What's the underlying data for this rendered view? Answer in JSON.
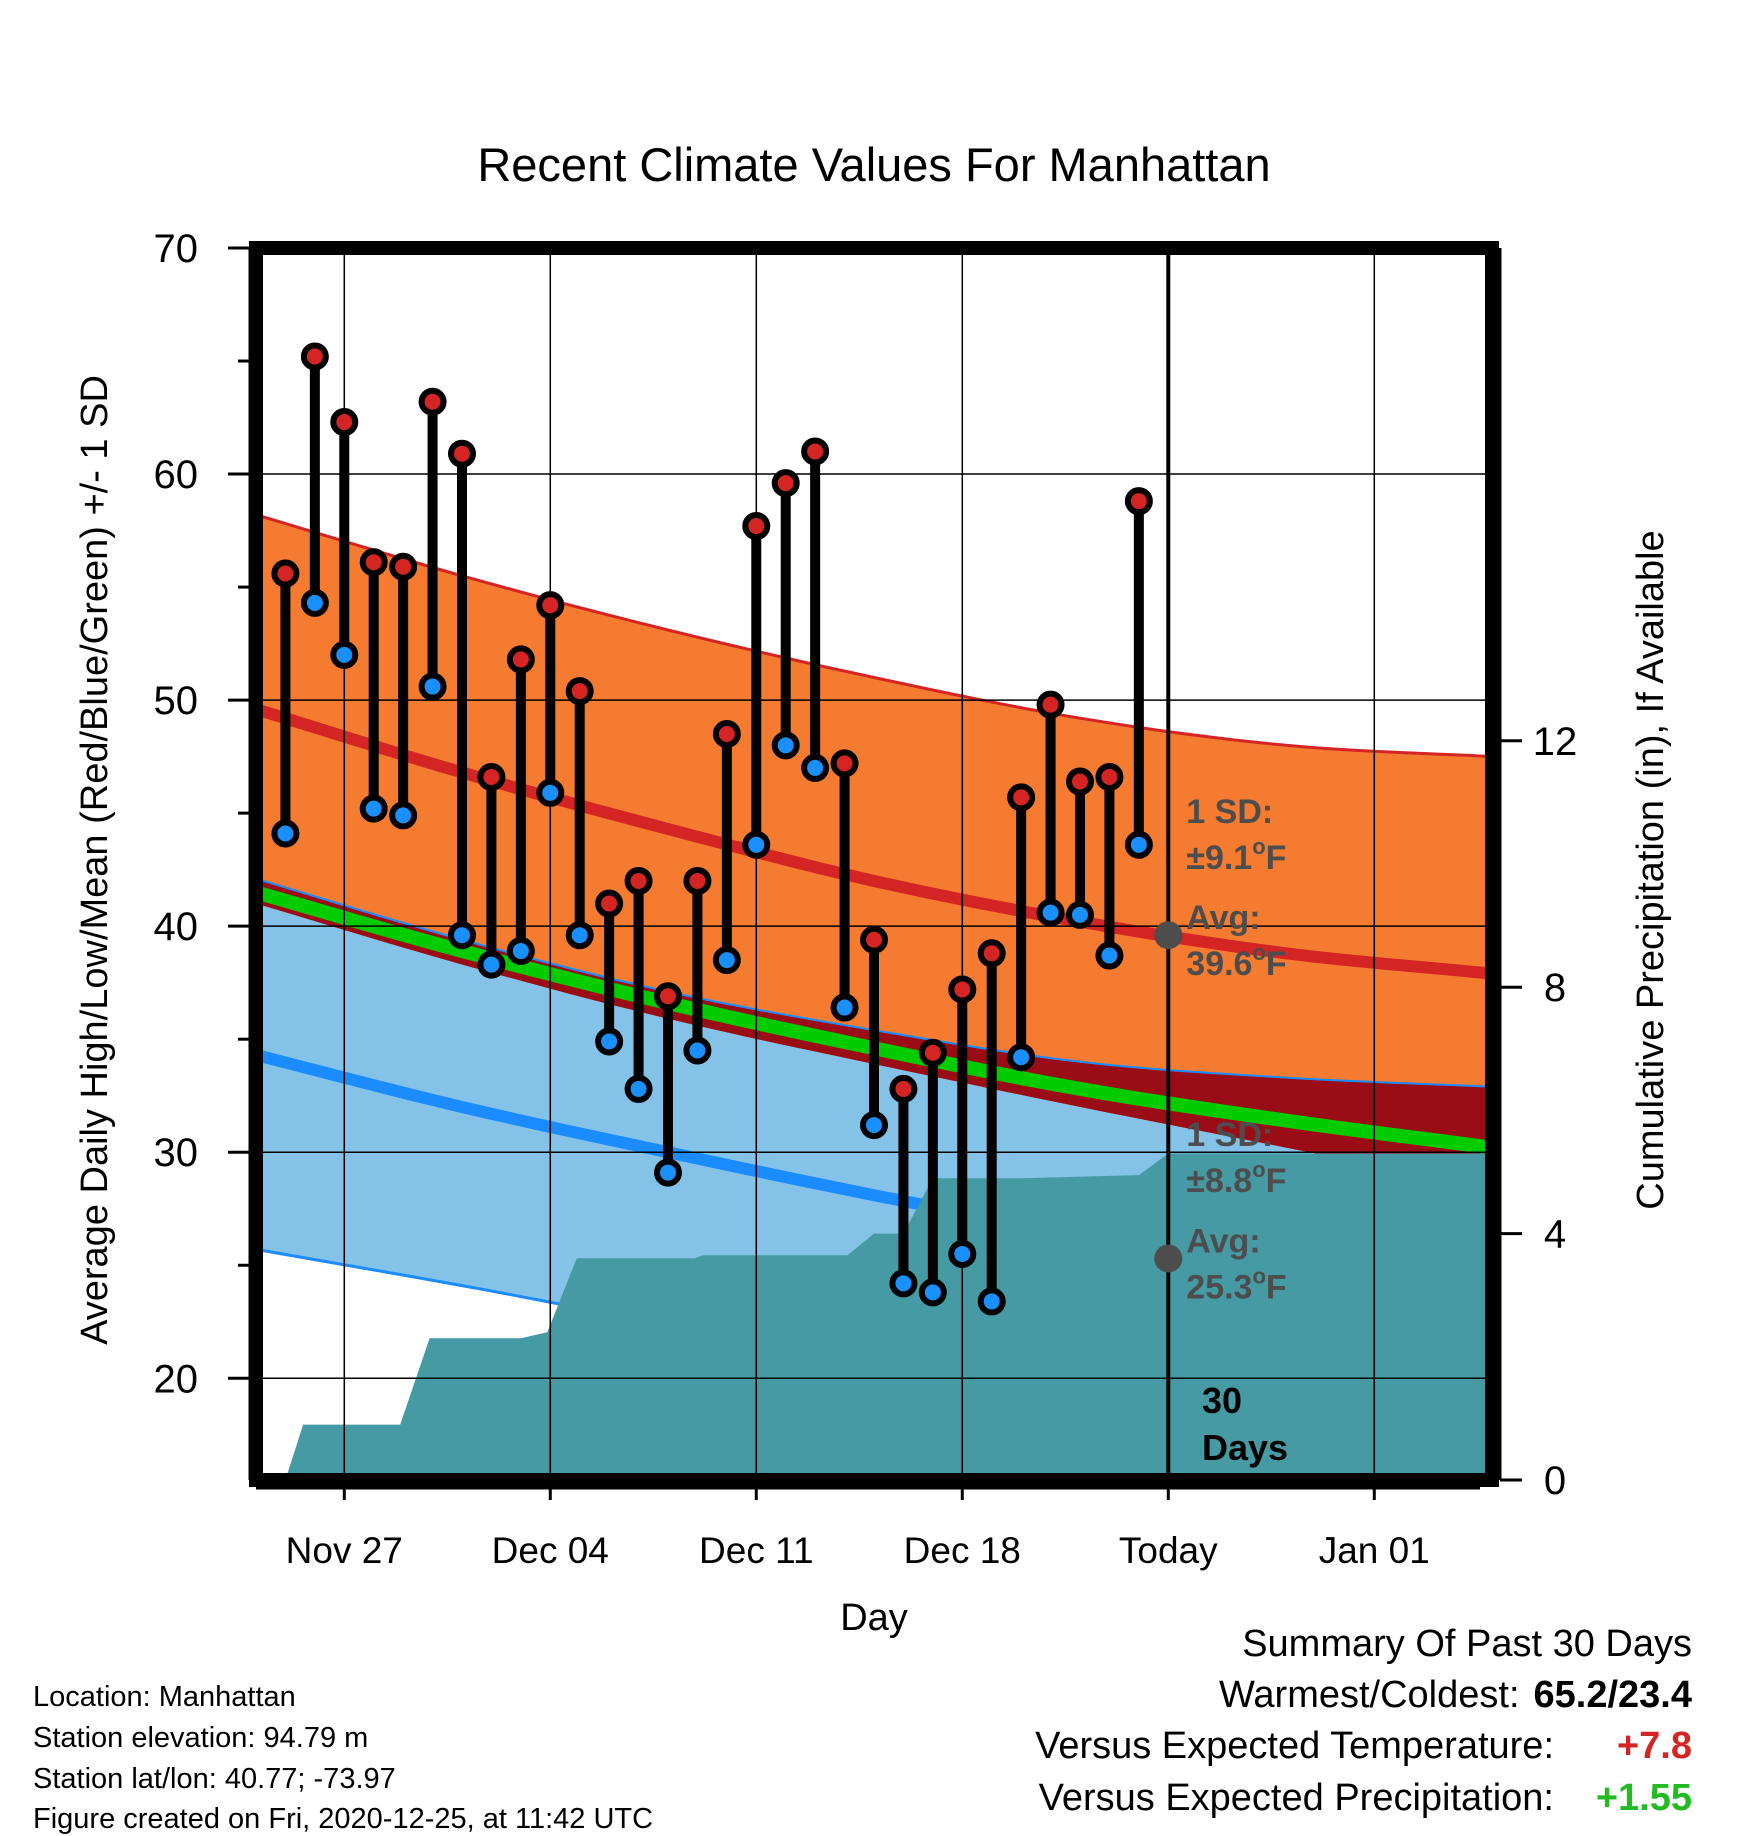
{
  "chart_data": {
    "type": "line",
    "title": "Recent Climate Values For Manhattan",
    "xlabel": "Day",
    "ylabel": "Average Daily High/Low/Mean (Red/Blue/Green) +/- 1 SD",
    "y2label": "Cumulative Precipitation (in), If Available",
    "ylim": [
      15.5,
      70
    ],
    "y2lim": [
      0,
      20
    ],
    "xlim": [
      0,
      42
    ],
    "x_tick_positions": [
      3,
      10,
      17,
      24,
      31,
      38
    ],
    "x_tick_labels": [
      "Nov 27",
      "Dec 04",
      "Dec 11",
      "Dec 18",
      "Today",
      "Jan 01"
    ],
    "y_ticks": [
      20,
      30,
      40,
      50,
      60,
      70
    ],
    "y2_ticks": [
      0,
      4,
      8,
      12
    ],
    "grid": true,
    "today_x": 31,
    "days": [
      1,
      2,
      3,
      4,
      5,
      6,
      7,
      8,
      9,
      10,
      11,
      12,
      13,
      14,
      15,
      16,
      17,
      18,
      19,
      20,
      21,
      22,
      23,
      24,
      25,
      26,
      27,
      28,
      29,
      30
    ],
    "daily_high": [
      55.6,
      65.2,
      62.3,
      56.1,
      55.9,
      63.2,
      60.9,
      46.6,
      51.8,
      54.2,
      50.4,
      41.0,
      42.0,
      36.9,
      42.0,
      48.5,
      57.7,
      59.6,
      61.0,
      47.2,
      39.4,
      32.8,
      34.4,
      37.2,
      38.8,
      45.7,
      49.8,
      46.4,
      46.6,
      58.8
    ],
    "daily_low": [
      44.1,
      54.3,
      52.0,
      45.2,
      44.9,
      50.6,
      39.6,
      38.3,
      38.9,
      45.9,
      39.6,
      34.9,
      32.8,
      29.1,
      34.5,
      38.5,
      43.6,
      48.0,
      47.0,
      36.4,
      31.2,
      24.2,
      23.8,
      25.5,
      23.4,
      34.2,
      40.6,
      40.5,
      38.7,
      43.6
    ],
    "normal_x": [
      0,
      7,
      14,
      21,
      28,
      35,
      42
    ],
    "normal_high": [
      49.6,
      46.8,
      44.3,
      42.0,
      40.2,
      38.8,
      37.9
    ],
    "normal_high_plus_sd": [
      58.2,
      55.5,
      53.1,
      51.0,
      49.2,
      48.0,
      47.5
    ],
    "normal_high_minus_sd": [
      42.1,
      39.4,
      37.1,
      35.4,
      34.0,
      33.3,
      32.9
    ],
    "normal_mean": [
      41.5,
      38.9,
      36.6,
      34.6,
      32.8,
      31.4,
      30.2
    ],
    "normal_low": [
      34.3,
      32.0,
      30.0,
      28.1,
      26.4,
      25.1,
      24.0
    ],
    "normal_low_plus_sd": [
      41.0,
      38.3,
      35.9,
      33.9,
      32.0,
      30.2,
      28.4
    ],
    "normal_low_minus_sd": [
      25.7,
      24.1,
      22.4,
      21.0,
      19.8,
      18.7,
      17.8
    ],
    "precip_cumulative": [
      [
        0,
        0
      ],
      [
        1,
        0
      ],
      [
        1.6,
        0.9
      ],
      [
        4.9,
        0.9
      ],
      [
        5.9,
        2.3
      ],
      [
        9,
        2.3
      ],
      [
        9.9,
        2.4
      ],
      [
        10.9,
        3.6
      ],
      [
        14.9,
        3.6
      ],
      [
        15.2,
        3.65
      ],
      [
        20.1,
        3.65
      ],
      [
        21,
        4.0
      ],
      [
        22,
        4.0
      ],
      [
        23,
        4.9
      ],
      [
        26,
        4.9
      ],
      [
        30,
        4.95
      ],
      [
        31,
        5.3
      ],
      [
        42,
        5.3
      ]
    ],
    "annotations": [
      {
        "id": "high_sd",
        "line1": "1 SD:",
        "line2": "±9.1",
        "unit": "F",
        "y": 44.3
      },
      {
        "id": "high_avg",
        "line1": "Avg:",
        "line2": "39.6",
        "unit": "F",
        "y": 39.6
      },
      {
        "id": "low_sd",
        "line1": "1 SD:",
        "line2": "±8.8",
        "unit": "F",
        "y": 30.0
      },
      {
        "id": "low_avg",
        "line1": "Avg:",
        "line2": "25.3",
        "unit": "F",
        "y": 25.3
      }
    ],
    "days_count_line1": "30",
    "days_count_line2": "Days",
    "degree_symbol": "o"
  },
  "colors": {
    "high_band": "#f47b2f",
    "high_line": "#d42424",
    "mean_line": "#00cc00",
    "low_band": "#85c2e8",
    "low_line": "#1a8cff",
    "band_overlap": "#9a0d16",
    "precip": "#459aa3",
    "high_marker": "#d42424",
    "low_marker": "#1a90ff",
    "avg_marker": "#4d4d4d",
    "annotation_text": "#4d4d4d",
    "positive_temp": "#d42424",
    "positive_precip": "#22bb22"
  },
  "station": {
    "location": "Location: Manhattan",
    "elevation": "Station elevation: 94.79 m",
    "latlon": "Station lat/lon: 40.77; -73.97",
    "created": "Figure created on Fri, 2020-12-25, at 11:42 UTC"
  },
  "summary": {
    "title": "Summary Of Past 30 Days",
    "warm_cold_label": "Warmest/Coldest:",
    "warm_cold_value": "65.2/23.4",
    "temp_label": "Versus Expected Temperature:",
    "temp_value": "+7.8",
    "precip_label": "Versus Expected Precipitation:",
    "precip_value": "+1.55"
  }
}
